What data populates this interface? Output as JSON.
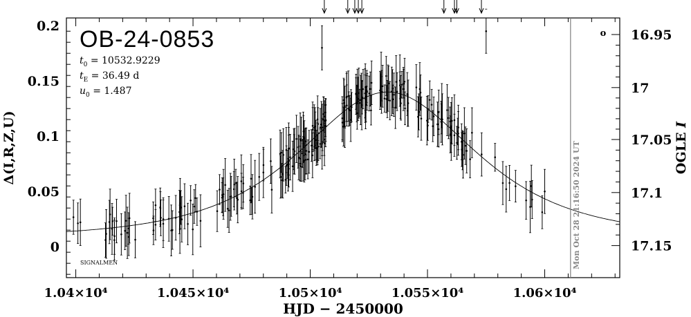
{
  "chart_data": {
    "type": "scatter",
    "title": "OB-24-0853",
    "params": [
      {
        "sym": "t",
        "sub": "0",
        "text": " = 10532.9229"
      },
      {
        "sym": "t",
        "sub": "E",
        "text": " = 36.49  d"
      },
      {
        "sym": "u",
        "sub": "0",
        "text": " = 1.487"
      }
    ],
    "xlabel": "HJD − 2450000",
    "ylabel_left": "Δ(I,R,Z,U)",
    "ylabel_right_prefix": "OGLE ",
    "ylabel_right_italic": "I",
    "xlim": [
      10396,
      10632
    ],
    "ylim": [
      -0.028,
      0.207
    ],
    "x_ticks": [
      {
        "value": 10400,
        "label": "1.04×10⁴"
      },
      {
        "value": 10450,
        "label": "1.045×10⁴"
      },
      {
        "value": 10500,
        "label": "1.05×10⁴"
      },
      {
        "value": 10550,
        "label": "1.055×10⁴"
      },
      {
        "value": 10600,
        "label": "1.06×10⁴"
      }
    ],
    "y_ticks_left": [
      {
        "value": 0,
        "label": "0"
      },
      {
        "value": 0.05,
        "label": "0.05"
      },
      {
        "value": 0.1,
        "label": "0.1"
      },
      {
        "value": 0.15,
        "label": "0.15"
      },
      {
        "value": 0.2,
        "label": "0.2"
      }
    ],
    "y_ticks_right": [
      {
        "value": 0.192,
        "label": "16.95"
      },
      {
        "value": 0.144,
        "label": "17"
      },
      {
        "value": 0.097,
        "label": "17.05"
      },
      {
        "value": 0.049,
        "label": "17.1"
      },
      {
        "value": 0.001,
        "label": "17.15"
      }
    ],
    "model": {
      "t0": 10532.9229,
      "tE": 36.49,
      "u0": 1.487,
      "peak": 0.14,
      "base": 0.0078
    },
    "arrows_x": [
      10506,
      10516,
      10519,
      10520.5,
      10522,
      10557,
      10561.5,
      10562.5,
      10573
    ],
    "vline_x": 10611,
    "timestamp": "Mon Oct 28 21:16:50 2024 UT",
    "signature": "SIGNALMEN",
    "marker": "o",
    "groups": [
      {
        "x0": 10399,
        "x1": 10408,
        "n": 3
      },
      {
        "x0": 10410,
        "x1": 10418,
        "n": 9
      },
      {
        "x0": 10419,
        "x1": 10426,
        "n": 8
      },
      {
        "x0": 10433,
        "x1": 10446,
        "n": 18
      },
      {
        "x0": 10446,
        "x1": 10454,
        "n": 8
      },
      {
        "x0": 10460,
        "x1": 10472,
        "n": 20
      },
      {
        "x0": 10474,
        "x1": 10484,
        "n": 10
      },
      {
        "x0": 10486,
        "x1": 10497,
        "n": 30
      },
      {
        "x0": 10497,
        "x1": 10507,
        "n": 40
      },
      {
        "x0": 10512,
        "x1": 10526,
        "n": 40
      },
      {
        "x0": 10526,
        "x1": 10532,
        "n": 8
      },
      {
        "x0": 10532,
        "x1": 10542,
        "n": 25
      },
      {
        "x0": 10545,
        "x1": 10556,
        "n": 18
      },
      {
        "x0": 10556,
        "x1": 10566,
        "n": 20
      },
      {
        "x0": 10566,
        "x1": 10582,
        "n": 6
      },
      {
        "x0": 10582,
        "x1": 10600,
        "n": 9
      }
    ],
    "outliers": [
      {
        "x": 10505,
        "y": 0.18
      },
      {
        "x": 10575,
        "y": 0.195
      },
      {
        "x": 10600,
        "y": 0.05
      }
    ]
  }
}
